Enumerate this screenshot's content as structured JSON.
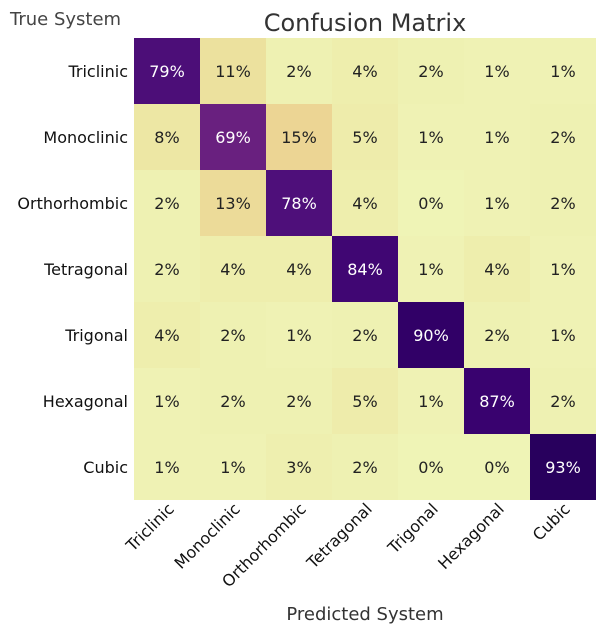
{
  "chart_data": {
    "type": "heatmap",
    "title": "Confusion Matrix",
    "ylabel": "True System",
    "xlabel": "Predicted System",
    "row_labels": [
      "Triclinic",
      "Monoclinic",
      "Orthorhombic",
      "Tetragonal",
      "Trigonal",
      "Hexagonal",
      "Cubic"
    ],
    "col_labels": [
      "Triclinic",
      "Monoclinic",
      "Orthorhombic",
      "Tetragonal",
      "Trigonal",
      "Hexagonal",
      "Cubic"
    ],
    "values": [
      [
        79,
        11,
        2,
        4,
        2,
        1,
        1
      ],
      [
        8,
        69,
        15,
        5,
        1,
        1,
        2
      ],
      [
        2,
        13,
        78,
        4,
        0,
        1,
        2
      ],
      [
        2,
        4,
        4,
        84,
        1,
        4,
        1
      ],
      [
        4,
        2,
        1,
        2,
        90,
        2,
        1
      ],
      [
        1,
        2,
        2,
        5,
        1,
        87,
        2
      ],
      [
        1,
        1,
        3,
        2,
        0,
        0,
        93
      ]
    ],
    "value_suffix": "%",
    "colormap": "magma_r",
    "range": [
      0,
      100
    ],
    "grid": false
  }
}
